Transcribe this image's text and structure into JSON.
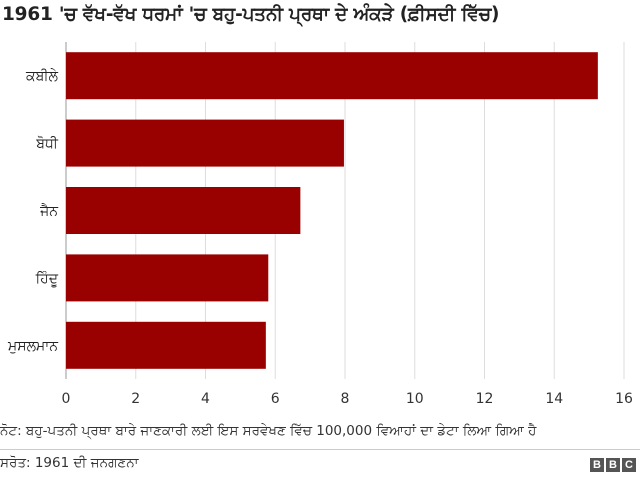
{
  "chart_data": {
    "type": "bar",
    "orientation": "horizontal",
    "title": "1961 'ਚ ਵੱਖ-ਵੱਖ ਧਰਮਾਂ 'ਚ ਬਹੁ-ਪਤਨੀ ਪ੍ਰਥਾ ਦੇ ਅੰਕੜੇ (ਫ਼ੀਸਦੀ ਵਿੱਚ)",
    "categories": [
      "ਕਬੀਲੇ",
      "ਬੋਧੀ",
      "ਜੈਨ",
      "ਹਿੰਦੂ",
      "ਮੁਸਲਮਾਨ"
    ],
    "values": [
      15.25,
      7.97,
      6.72,
      5.8,
      5.73
    ],
    "xlim": [
      0,
      16
    ],
    "xticks": [
      "0",
      "2",
      "4",
      "6",
      "8",
      "10",
      "12",
      "14",
      "16"
    ],
    "grid": true,
    "colors": {
      "bar": "#990000",
      "grid": "#dddddd",
      "axis": "#999999"
    }
  },
  "footer": {
    "note": "ਨੋਟ: ਬਹੁ-ਪਤਨੀ ਪ੍ਰਥਾ ਬਾਰੇ ਜਾਣਕਾਰੀ ਲਈ ਇਸ ਸਰਵੇਖਣ ਵਿੱਚ 100,000 ਵਿਆਹਾਂ ਦਾ ਡੇਟਾ ਲਿਆ ਗਿਆ ਹੈ",
    "source": "ਸਰੋਤ: 1961 ਦੀ ਜਨਗਣਨਾ",
    "logo": [
      "B",
      "B",
      "C"
    ]
  }
}
